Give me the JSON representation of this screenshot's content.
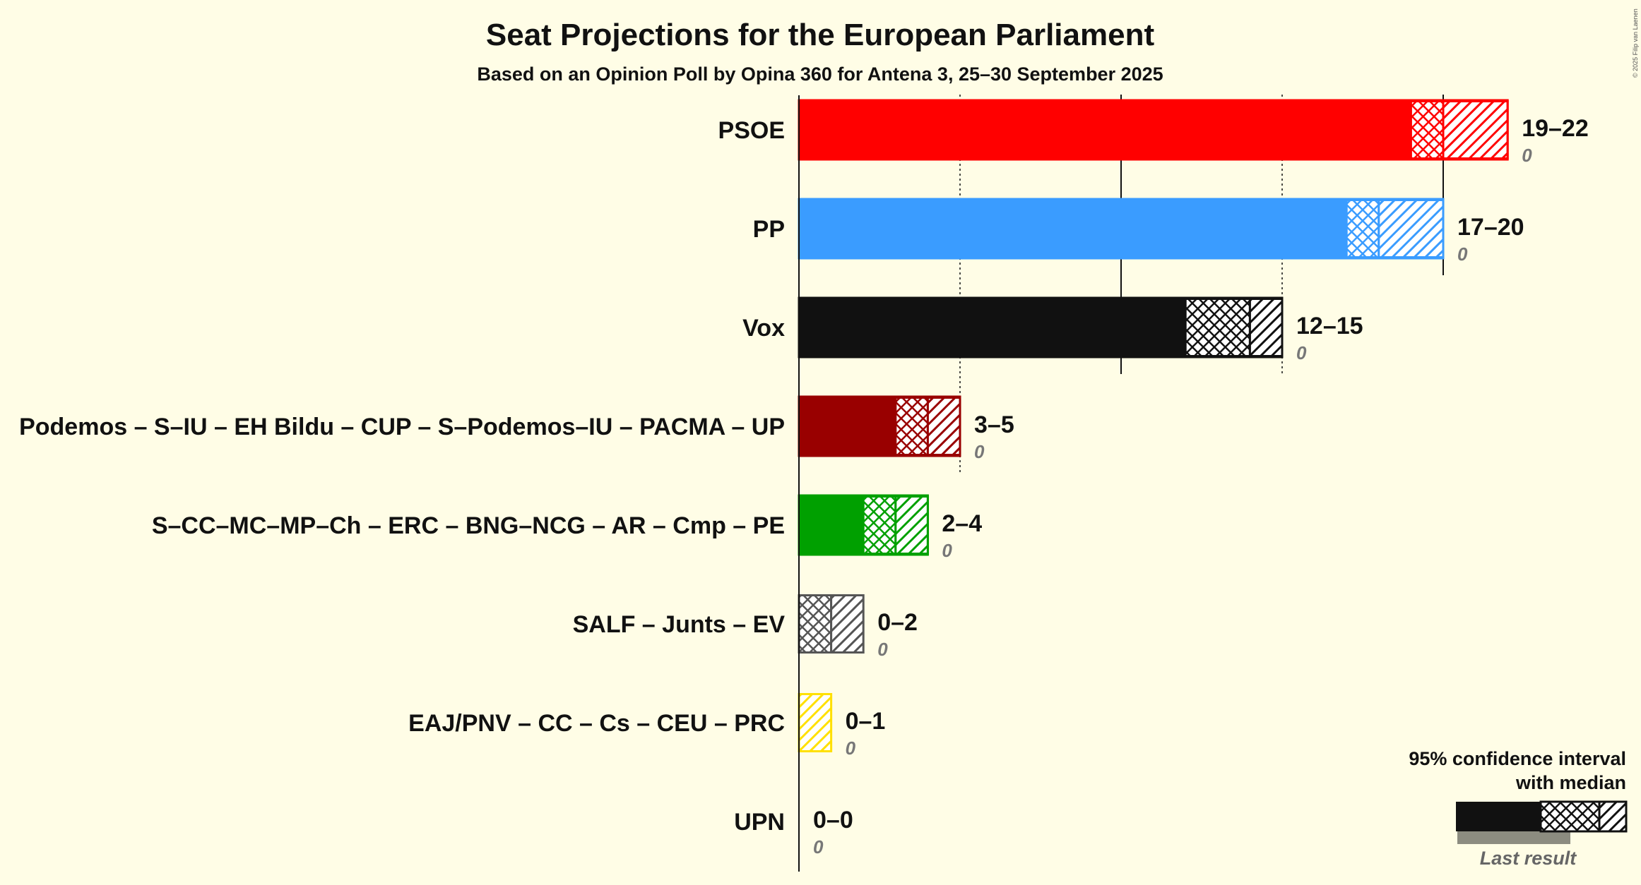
{
  "title": "Seat Projections for the European Parliament",
  "subtitle": "Based on an Opinion Poll by Opina 360 for Antena 3, 25–30 September 2025",
  "copyright": "© 2025 Filip van Laenen",
  "legend": {
    "line1": "95% confidence interval",
    "line2": "with median",
    "last_result": "Last result"
  },
  "chart_data": {
    "type": "bar",
    "orientation": "horizontal",
    "x_range": [
      0,
      22
    ],
    "gridlines": [
      5,
      10,
      15,
      20
    ],
    "series": [
      {
        "party": "PSOE",
        "low": 19,
        "median": 20,
        "high": 22,
        "range_label": "19–22",
        "last_result": "0",
        "color": "#ff0000"
      },
      {
        "party": "PP",
        "low": 17,
        "median": 18,
        "high": 20,
        "range_label": "17–20",
        "last_result": "0",
        "color": "#3a9cff"
      },
      {
        "party": "Vox",
        "low": 12,
        "median": 14,
        "high": 15,
        "range_label": "12–15",
        "last_result": "0",
        "color": "#111111"
      },
      {
        "party": "Podemos – S–IU – EH Bildu – CUP – S–Podemos–IU – PACMA – UP",
        "low": 3,
        "median": 4,
        "high": 5,
        "range_label": "3–5",
        "last_result": "0",
        "color": "#990000"
      },
      {
        "party": "S–CC–MC–MP–Ch – ERC – BNG–NCG – AR – Cmp – PE",
        "low": 2,
        "median": 3,
        "high": 4,
        "range_label": "2–4",
        "last_result": "0",
        "color": "#00a000"
      },
      {
        "party": "SALF – Junts – EV",
        "low": 0,
        "median": 1,
        "high": 2,
        "range_label": "0–2",
        "last_result": "0",
        "color": "#555555"
      },
      {
        "party": "EAJ/PNV – CC – Cs – CEU – PRC",
        "low": 0,
        "median": 0,
        "high": 1,
        "range_label": "0–1",
        "last_result": "0",
        "color": "#ffe000"
      },
      {
        "party": "UPN",
        "low": 0,
        "median": 0,
        "high": 0,
        "range_label": "0–0",
        "last_result": "0",
        "color": "#888888"
      }
    ]
  }
}
